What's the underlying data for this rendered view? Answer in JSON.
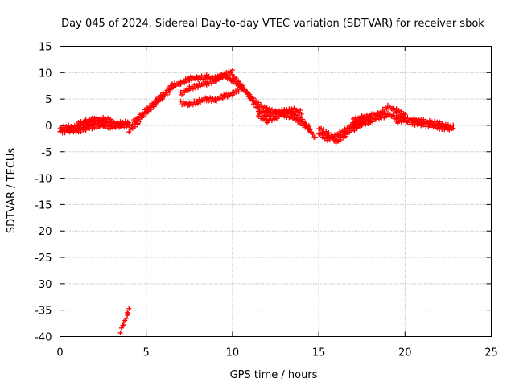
{
  "chart_data": {
    "type": "scatter",
    "title": "Day 045 of 2024, Sidereal Day-to-day VTEC variation (SDTVAR) for receiver sbok",
    "xlabel": "GPS time / hours",
    "ylabel": "SDTVAR / TECUs",
    "xlim": [
      0,
      25
    ],
    "ylim": [
      -40,
      15
    ],
    "xticks": [
      0,
      5,
      10,
      15,
      20,
      25
    ],
    "yticks": [
      15,
      10,
      5,
      0,
      -5,
      -10,
      -15,
      -20,
      -25,
      -30,
      -35,
      -40
    ],
    "grid": true,
    "marker": "+",
    "series": [
      {
        "name": "SDTVAR",
        "color": "#ff0000",
        "bands": [
          {
            "x": [
              0.0,
              0.5,
              1.0,
              1.5,
              2.0,
              2.5,
              3.0,
              3.5,
              4.0
            ],
            "y": [
              -0.6,
              -0.3,
              -0.3,
              0.2,
              0.6,
              0.7,
              0.3,
              0.4,
              0.5
            ]
          },
          {
            "x": [
              0.0,
              0.5,
              1.0,
              1.5,
              2.0,
              2.5,
              3.0,
              3.5,
              4.0
            ],
            "y": [
              -1.2,
              -1.0,
              -1.1,
              -0.6,
              -0.2,
              0.0,
              -0.3,
              -0.1,
              0.0
            ]
          },
          {
            "x": [
              1.0,
              1.5,
              2.0,
              2.5,
              3.0
            ],
            "y": [
              0.2,
              0.8,
              1.1,
              1.2,
              0.9
            ]
          },
          {
            "x": [
              4.0,
              4.5,
              5.0,
              5.5,
              6.0,
              6.5
            ],
            "y": [
              -1.0,
              0.5,
              2.5,
              4.0,
              5.5,
              7.0
            ]
          },
          {
            "x": [
              4.2,
              4.7,
              5.2,
              5.7,
              6.2,
              6.5
            ],
            "y": [
              0.5,
              2.0,
              3.5,
              5.0,
              6.5,
              7.8
            ]
          },
          {
            "x": [
              6.5,
              7.0,
              7.5,
              8.0,
              8.5,
              9.0,
              9.5
            ],
            "y": [
              7.5,
              8.0,
              8.8,
              9.0,
              9.2,
              8.8,
              9.5
            ]
          },
          {
            "x": [
              7.0,
              7.5,
              8.0,
              8.5,
              9.0,
              9.5,
              10.0
            ],
            "y": [
              6.0,
              7.0,
              7.5,
              8.0,
              8.5,
              9.5,
              10.3
            ]
          },
          {
            "x": [
              7.0,
              7.5,
              8.0,
              8.5,
              9.0,
              9.5,
              10.0,
              10.5
            ],
            "y": [
              4.3,
              4.0,
              4.5,
              5.0,
              4.8,
              5.5,
              6.0,
              7.0
            ]
          },
          {
            "x": [
              9.0,
              9.5,
              10.0,
              10.5,
              11.0,
              11.5,
              12.0,
              12.5,
              13.0,
              13.5,
              14.0,
              14.5,
              14.8
            ],
            "y": [
              9.0,
              9.5,
              8.5,
              7.5,
              5.5,
              4.0,
              3.0,
              2.5,
              2.0,
              1.5,
              0.5,
              -1.0,
              -2.5
            ]
          },
          {
            "x": [
              10.0,
              10.5,
              11.0,
              11.5,
              12.0,
              12.5,
              13.0,
              13.5,
              14.0,
              14.5
            ],
            "y": [
              9.5,
              7.5,
              5.5,
              3.0,
              2.0,
              2.5,
              2.8,
              2.3,
              1.0,
              -0.5
            ]
          },
          {
            "x": [
              11.5,
              12.0,
              12.5,
              13.0,
              13.5,
              14.0
            ],
            "y": [
              2.0,
              0.8,
              1.5,
              2.5,
              3.0,
              2.5
            ]
          },
          {
            "x": [
              15.0,
              15.5,
              16.0,
              16.5,
              17.0,
              17.5
            ],
            "y": [
              -0.5,
              -1.5,
              -3.0,
              -2.0,
              -0.5,
              0.5
            ]
          },
          {
            "x": [
              15.0,
              15.5,
              16.0,
              16.5,
              17.0,
              17.5,
              18.0
            ],
            "y": [
              -1.5,
              -2.5,
              -2.0,
              -1.0,
              0.2,
              1.0,
              1.5
            ]
          },
          {
            "x": [
              17.0,
              17.5,
              18.0,
              18.5,
              19.0,
              19.5,
              20.0
            ],
            "y": [
              1.0,
              1.5,
              1.8,
              2.2,
              3.5,
              2.8,
              2.0
            ]
          },
          {
            "x": [
              17.0,
              17.5,
              18.0,
              18.5,
              19.0,
              19.5,
              20.0
            ],
            "y": [
              -0.8,
              0.2,
              0.8,
              1.5,
              2.0,
              1.5,
              1.2
            ]
          },
          {
            "x": [
              19.5,
              20.0,
              20.5,
              21.0,
              21.5,
              22.0,
              22.5,
              22.8
            ],
            "y": [
              0.5,
              1.3,
              1.0,
              0.8,
              0.6,
              0.3,
              -0.2,
              -0.3
            ]
          },
          {
            "x": [
              20.0,
              20.5,
              21.0,
              21.5,
              22.0,
              22.5,
              22.8
            ],
            "y": [
              0.8,
              0.4,
              0.2,
              0.0,
              -0.4,
              -0.6,
              -0.5
            ]
          },
          {
            "x": [
              3.5,
              3.7,
              3.9,
              4.0
            ],
            "y": [
              -39.0,
              -37.5,
              -35.8,
              -35.0
            ]
          }
        ]
      }
    ]
  }
}
